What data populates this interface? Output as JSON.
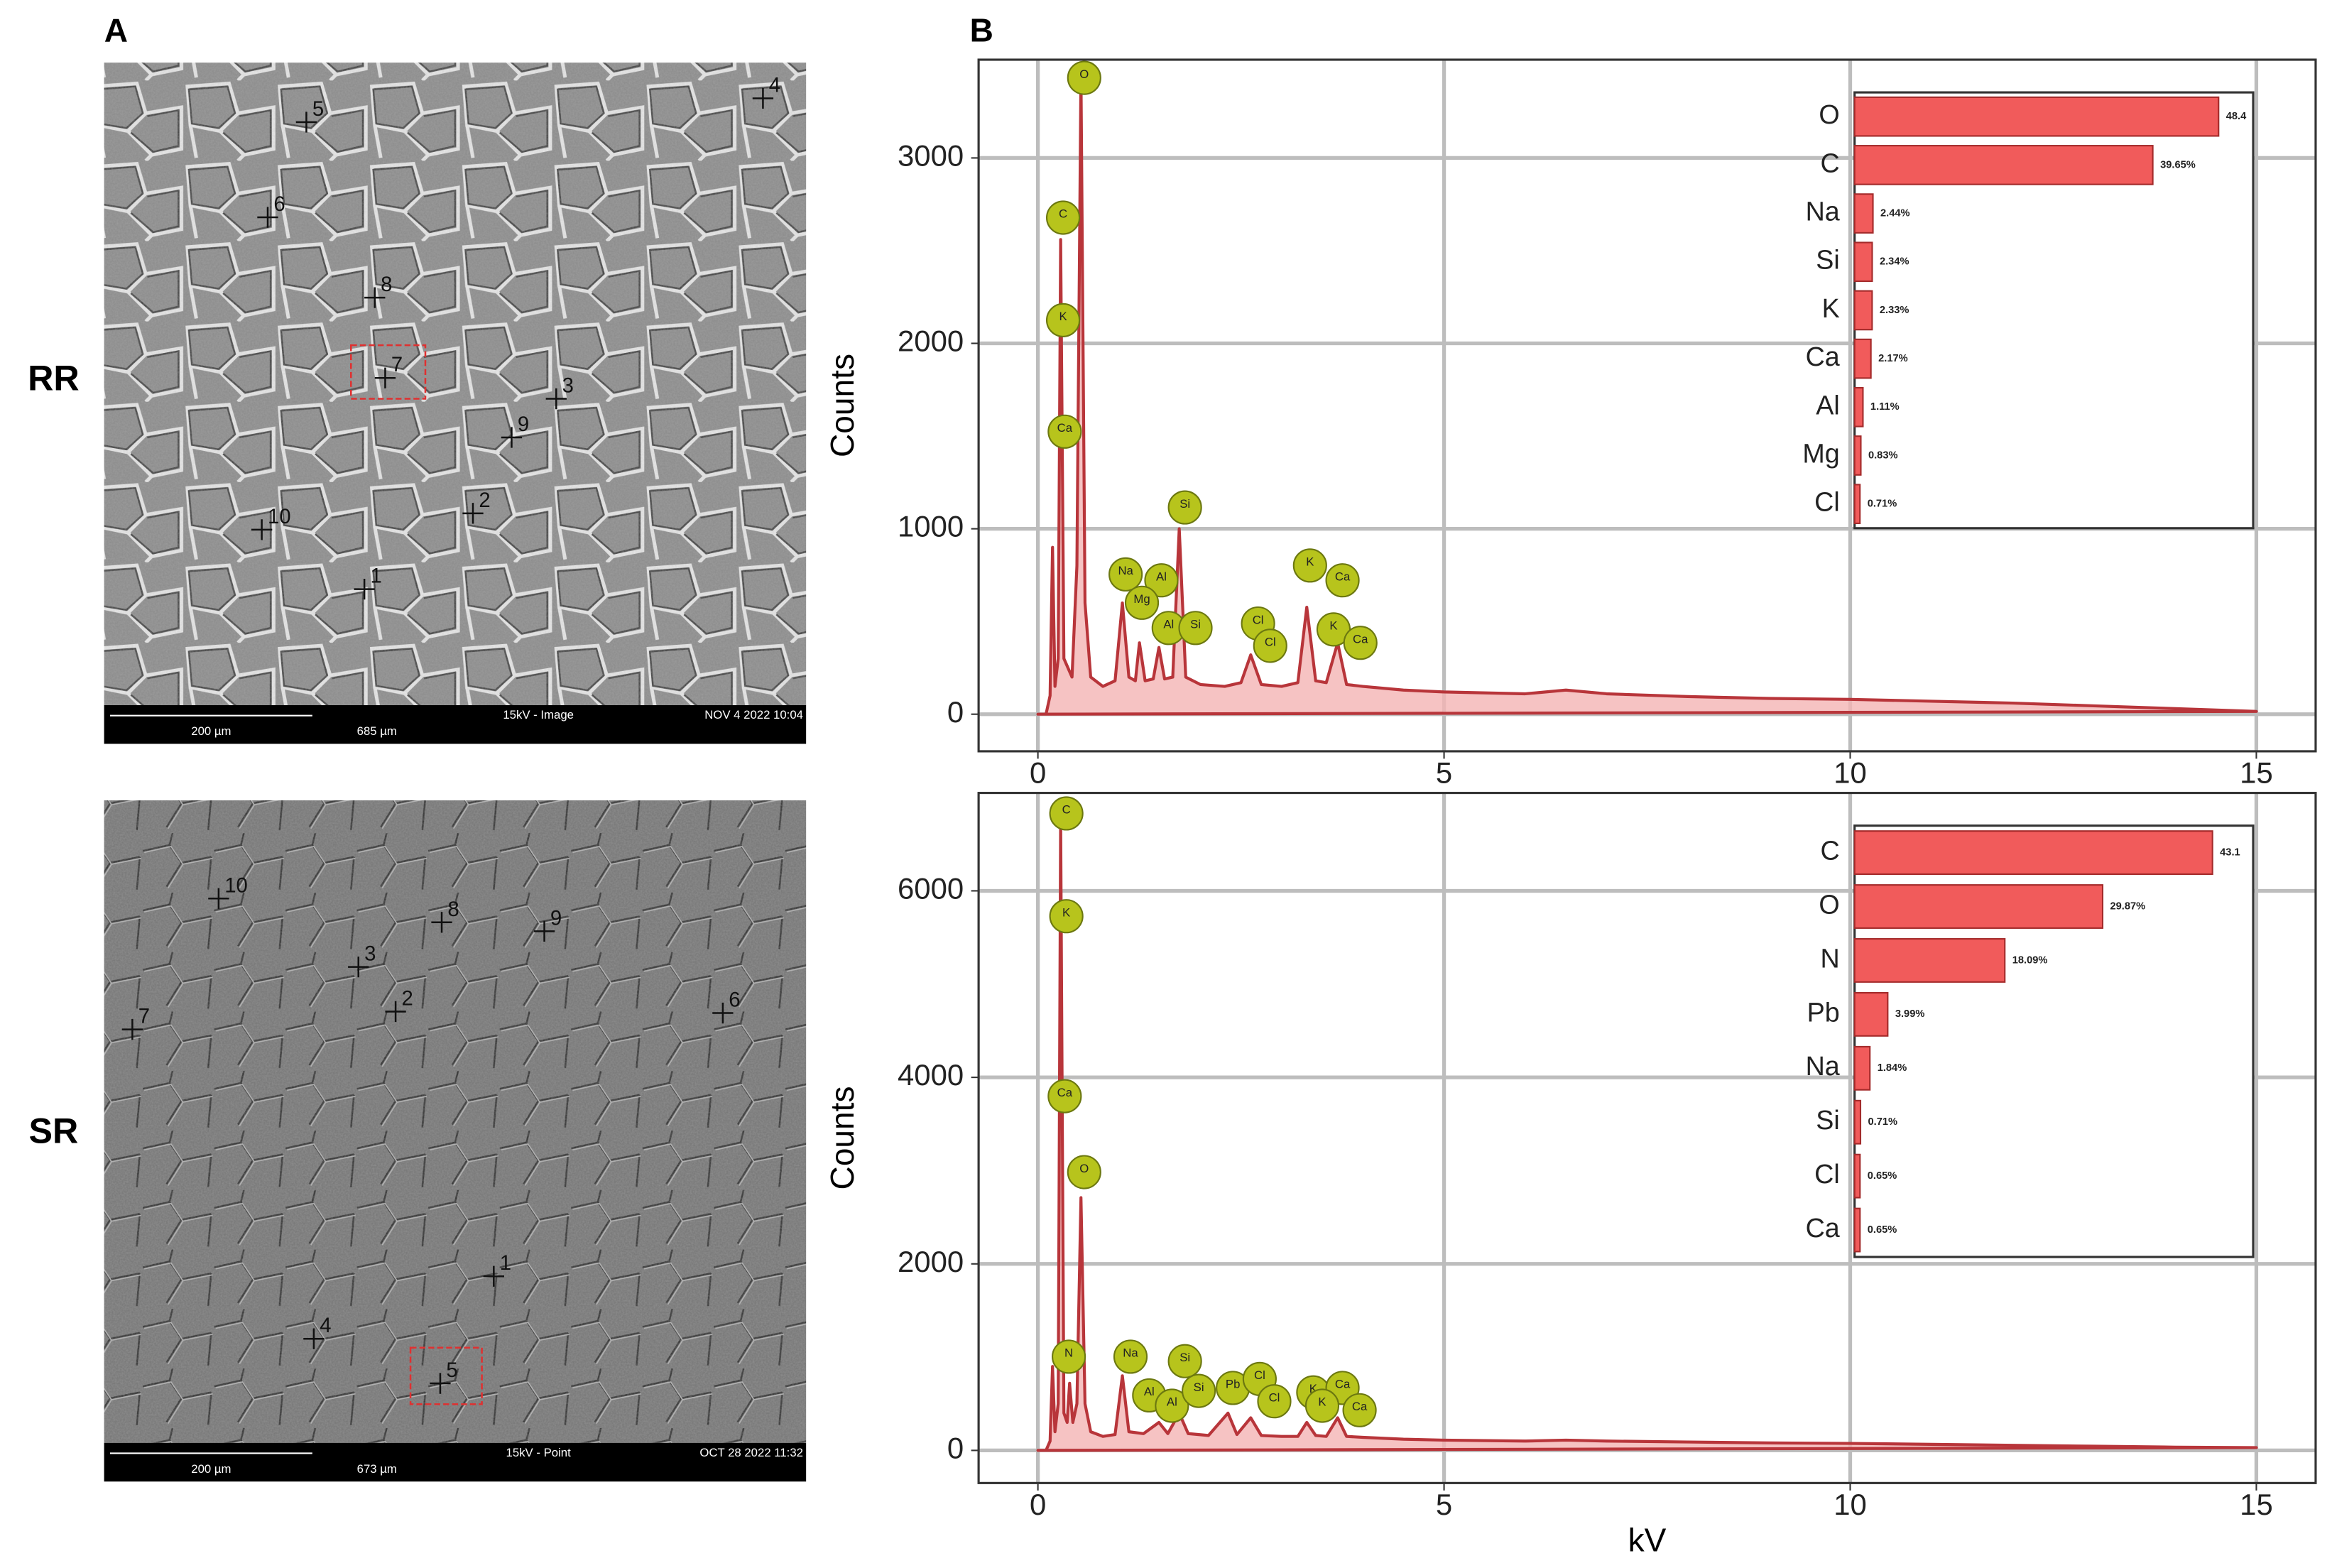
{
  "panel_labels": [
    "A",
    "B"
  ],
  "sem_images": [
    {
      "row_label": "RR",
      "points": [
        "1",
        "2",
        "3",
        "4",
        "5",
        "6",
        "7",
        "8",
        "9",
        "10"
      ],
      "scale_bar": "200 µm",
      "field_width": "685 µm",
      "mode": "15kV - Image",
      "timestamp": "NOV 4 2022 10:04"
    },
    {
      "row_label": "SR",
      "points": [
        "1",
        "2",
        "3",
        "4",
        "5",
        "6",
        "7",
        "8",
        "9",
        "10"
      ],
      "scale_bar": "200 µm",
      "field_width": "673 µm",
      "mode": "15kV - Point",
      "timestamp": "OCT 28 2022 11:32"
    }
  ],
  "chart_data": [
    {
      "type": "line",
      "y_label": "Counts",
      "x": [
        0,
        0.1,
        0.15,
        0.18,
        0.21,
        0.25,
        0.28,
        0.32,
        0.42,
        0.48,
        0.53,
        0.58,
        0.65,
        0.8,
        0.95,
        1.04,
        1.12,
        1.2,
        1.25,
        1.32,
        1.42,
        1.49,
        1.56,
        1.66,
        1.74,
        1.82,
        2.0,
        2.3,
        2.5,
        2.62,
        2.75,
        3.0,
        3.2,
        3.31,
        3.42,
        3.55,
        3.69,
        3.8,
        4.0,
        4.5,
        5.0,
        6.0,
        6.5,
        7.0,
        8.0,
        9.0,
        10.0,
        11.0,
        12.0,
        13.0,
        14.0,
        15.0
      ],
      "series": [
        {
          "color": "#b8353a",
          "values": [
            0,
            0,
            100,
            900,
            150,
            300,
            2560,
            300,
            200,
            800,
            3450,
            600,
            200,
            150,
            180,
            600,
            200,
            180,
            385,
            180,
            190,
            360,
            190,
            200,
            1000,
            200,
            160,
            150,
            170,
            320,
            160,
            150,
            170,
            577,
            180,
            170,
            385,
            160,
            150,
            130,
            120,
            110,
            130,
            110,
            95,
            85,
            80,
            70,
            60,
            45,
            30,
            15
          ]
        }
      ],
      "xlim": [
        -0.73,
        15.73
      ],
      "ylim": [
        -200,
        3530
      ],
      "xticks": [
        0,
        5,
        10,
        15
      ],
      "yticks": [
        0,
        1000,
        2000,
        3000
      ],
      "grid": true,
      "annotations": [
        {
          "text": "O",
          "x": 0.57,
          "y": 3432
        },
        {
          "text": "C",
          "x": 0.31,
          "y": 2678
        },
        {
          "text": "K",
          "x": 0.31,
          "y": 2125
        },
        {
          "text": "Ca",
          "x": 0.33,
          "y": 1524
        },
        {
          "text": "Si",
          "x": 1.81,
          "y": 1115
        },
        {
          "text": "Na",
          "x": 1.08,
          "y": 754
        },
        {
          "text": "Al",
          "x": 1.52,
          "y": 722
        },
        {
          "text": "Mg",
          "x": 1.28,
          "y": 601
        },
        {
          "text": "Al",
          "x": 1.61,
          "y": 465
        },
        {
          "text": "Si",
          "x": 1.94,
          "y": 465
        },
        {
          "text": "Cl",
          "x": 2.71,
          "y": 489
        },
        {
          "text": "Cl",
          "x": 2.86,
          "y": 369
        },
        {
          "text": "K",
          "x": 3.35,
          "y": 802
        },
        {
          "text": "Ca",
          "x": 3.75,
          "y": 722
        },
        {
          "text": "K",
          "x": 3.64,
          "y": 457
        },
        {
          "text": "Ca",
          "x": 3.97,
          "y": 385
        }
      ]
    },
    {
      "type": "line",
      "y_label": "Counts",
      "x_label": "kV",
      "x": [
        0,
        0.1,
        0.15,
        0.18,
        0.21,
        0.25,
        0.28,
        0.32,
        0.36,
        0.39,
        0.43,
        0.48,
        0.53,
        0.58,
        0.65,
        0.8,
        0.95,
        1.04,
        1.12,
        1.3,
        1.49,
        1.6,
        1.74,
        1.85,
        2.1,
        2.34,
        2.45,
        2.62,
        2.75,
        3.0,
        3.2,
        3.31,
        3.42,
        3.55,
        3.69,
        3.8,
        4.0,
        4.5,
        5.0,
        6.0,
        6.5,
        7.0,
        8.0,
        9.0,
        10.0,
        11.0,
        12.0,
        13.0,
        14.0,
        15.0
      ],
      "series": [
        {
          "color": "#b8353a",
          "values": [
            0,
            0,
            100,
            900,
            200,
            500,
            6780,
            400,
            300,
            720,
            300,
            500,
            2710,
            500,
            200,
            150,
            170,
            800,
            200,
            180,
            300,
            180,
            400,
            180,
            160,
            400,
            170,
            350,
            160,
            150,
            150,
            300,
            160,
            150,
            350,
            150,
            140,
            120,
            110,
            100,
            110,
            100,
            90,
            80,
            75,
            65,
            55,
            45,
            35,
            30
          ]
        }
      ],
      "xlim": [
        -0.73,
        15.73
      ],
      "ylim": [
        -350,
        7050
      ],
      "xticks": [
        0,
        5,
        10,
        15
      ],
      "yticks": [
        0,
        2000,
        4000,
        6000
      ],
      "grid": true,
      "annotations": [
        {
          "text": "C",
          "x": 0.35,
          "y": 6830
        },
        {
          "text": "K",
          "x": 0.35,
          "y": 5728
        },
        {
          "text": "Ca",
          "x": 0.33,
          "y": 3798
        },
        {
          "text": "O",
          "x": 0.57,
          "y": 2984
        },
        {
          "text": "N",
          "x": 0.38,
          "y": 1005
        },
        {
          "text": "Na",
          "x": 1.14,
          "y": 1005
        },
        {
          "text": "Si",
          "x": 1.81,
          "y": 957
        },
        {
          "text": "Al",
          "x": 1.37,
          "y": 590
        },
        {
          "text": "Al",
          "x": 1.65,
          "y": 479
        },
        {
          "text": "Si",
          "x": 1.98,
          "y": 638
        },
        {
          "text": "Pb",
          "x": 2.4,
          "y": 670
        },
        {
          "text": "Cl",
          "x": 2.73,
          "y": 766
        },
        {
          "text": "Cl",
          "x": 2.91,
          "y": 527
        },
        {
          "text": "K",
          "x": 3.39,
          "y": 622
        },
        {
          "text": "Ca",
          "x": 3.75,
          "y": 670
        },
        {
          "text": "K",
          "x": 3.5,
          "y": 479
        },
        {
          "text": "Ca",
          "x": 3.96,
          "y": 431
        }
      ]
    },
    {
      "type": "barh",
      "categories": [
        "O",
        "C",
        "Na",
        "Si",
        "K",
        "Ca",
        "Al",
        "Mg",
        "Cl"
      ],
      "values": [
        48.4,
        39.65,
        2.44,
        2.34,
        2.33,
        2.17,
        1.11,
        0.83,
        0.71
      ],
      "value_labels": [
        "48.4",
        "39.65%",
        "2.44%",
        "2.34%",
        "2.33%",
        "2.17%",
        "1.11%",
        "0.83%",
        "0.71%"
      ],
      "color": "#f15b5b",
      "xlim": [
        0,
        53
      ]
    },
    {
      "type": "barh",
      "categories": [
        "C",
        "O",
        "N",
        "Pb",
        "Na",
        "Si",
        "Cl",
        "Ca"
      ],
      "values": [
        43.1,
        29.87,
        18.09,
        3.99,
        1.84,
        0.71,
        0.65,
        0.65
      ],
      "value_labels": [
        "43.1",
        "29.87%",
        "18.09%",
        "3.99%",
        "1.84%",
        "0.71%",
        "0.65%",
        "0.65%"
      ],
      "color": "#f15b5b",
      "xlim": [
        0,
        48
      ]
    }
  ]
}
